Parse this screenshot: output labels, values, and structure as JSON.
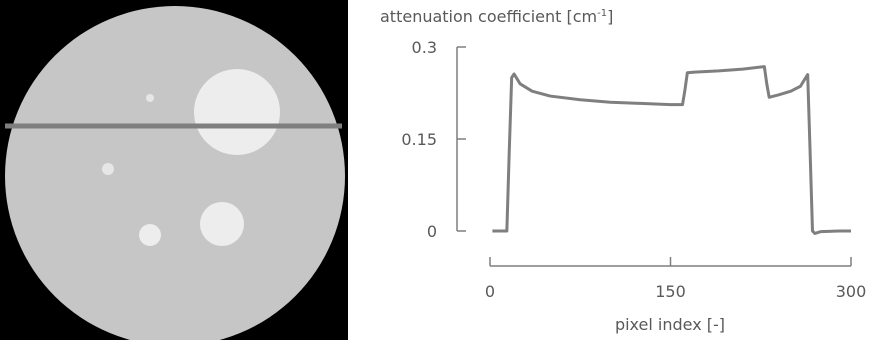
{
  "chart_data": {
    "type": "line",
    "y_label": "attenuation coefficient [cm",
    "y_label_sup": "-1",
    "y_label_end": "]",
    "x_label": "pixel index [-]",
    "x": [
      2,
      12,
      14,
      16,
      18,
      20,
      25,
      35,
      50,
      75,
      100,
      125,
      150,
      160,
      162,
      164,
      170,
      190,
      210,
      228,
      230,
      232,
      240,
      250,
      258,
      263,
      264,
      266,
      268,
      270,
      275,
      290,
      300
    ],
    "series": [
      {
        "color": "#7f7f7f",
        "values": [
          0,
          0,
          0,
          0.13,
          0.25,
          0.256,
          0.24,
          0.228,
          0.22,
          0.214,
          0.21,
          0.208,
          0.206,
          0.206,
          0.23,
          0.258,
          0.259,
          0.261,
          0.264,
          0.268,
          0.24,
          0.218,
          0.222,
          0.228,
          0.236,
          0.252,
          0.255,
          0.13,
          0,
          -0.004,
          -0.001,
          0,
          0
        ]
      }
    ],
    "xlim": [
      0,
      300
    ],
    "xticks": [
      0,
      150,
      300
    ],
    "ylim": [
      0,
      0.3
    ],
    "yticks": [
      0,
      0.15,
      0.3
    ]
  }
}
